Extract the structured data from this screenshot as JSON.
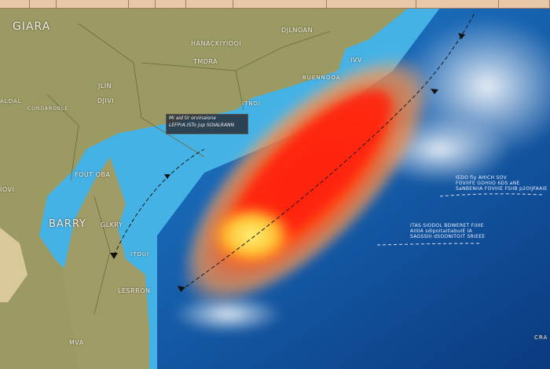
{
  "title": "",
  "colors": {
    "ocean_deep": "#0d3f86",
    "ocean_shallow": "#3aa6dc",
    "land": "#9a9a60",
    "storm_core": "#ff2a10",
    "storm_outer": "#ff8a30",
    "storm_eye": "#ffd23a",
    "clouds": "#e9eef5"
  },
  "labels": {
    "region_1": "GIARA",
    "region_2": "HANACKIYIOOI",
    "region_3": "TMDRA",
    "region_4": "DJLNOAN",
    "region_5": "JLIN",
    "region_6": "DJIVI",
    "region_7": "ALDAL",
    "region_8": "CONDAROBLE",
    "region_9": "BUENNOOA",
    "region_10": "ITNDI",
    "region_11": "FOUT OBA",
    "region_12": "IOVI",
    "region_13": "BARRY",
    "region_14": "GLKRY",
    "region_15": "ITOUI",
    "region_16": "LESRRON",
    "region_17": "MVA",
    "region_18": "CRA",
    "region_19": "IVV"
  },
  "callout": {
    "line1": "Mi aid tir orvinaiona",
    "line2": "LEFPrA.ISTo jup SOIALRANN"
  },
  "annotations": {
    "a1": [
      "IEDO fiy AHICH SOV",
      "FOVIIFE GOHIIO 6DS aNE",
      "SaNBENIIA FOVIIIE FSIIB p2OIJFAAIE"
    ],
    "a2": [
      "ITAS SIODOL BDWERET FIIIIE",
      "AIIIIA sdipoitaitiabuIE IA",
      "SAGSSIII dSOONITOIT SRIEEE"
    ]
  },
  "storm_track": {
    "dashed": true
  }
}
